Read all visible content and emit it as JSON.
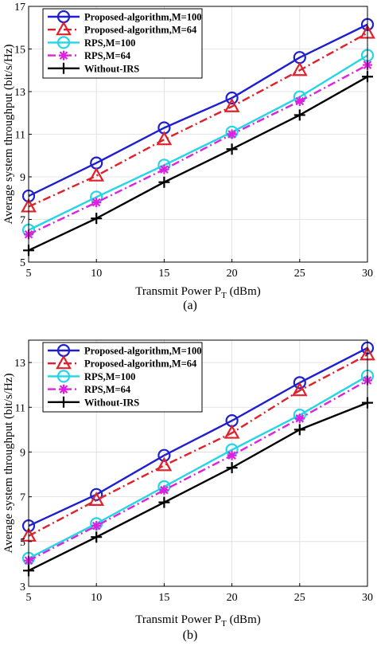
{
  "chart_data": [
    {
      "type": "line",
      "caption": "(a)",
      "xlabel_main": "Transmit Power P",
      "xlabel_sub": "T",
      "xlabel_unit": " (dBm)",
      "ylabel": "Average system throughput (bit/s/Hz)",
      "xlim": [
        5,
        30
      ],
      "ylim": [
        5,
        17
      ],
      "x_ticks": [
        5,
        10,
        15,
        20,
        25,
        30
      ],
      "y_ticks": [
        5,
        7,
        9,
        11,
        13,
        15,
        17
      ],
      "grid": true,
      "legend_position": "top-left",
      "x": [
        5,
        10,
        15,
        20,
        25,
        30
      ],
      "series": [
        {
          "name": "Proposed-algorithm,M=100",
          "color": "#1f1fd0",
          "dash": "solid",
          "marker": "circle",
          "values": [
            8.1,
            9.65,
            11.3,
            12.7,
            14.6,
            16.15
          ]
        },
        {
          "name": "Proposed-algorithm,M=64",
          "color": "#e0202a",
          "dash": "dashdot",
          "marker": "triangle",
          "values": [
            7.6,
            9.05,
            10.75,
            12.3,
            14.0,
            15.75
          ]
        },
        {
          "name": "RPS,M=100",
          "color": "#22d6e6",
          "dash": "solid",
          "marker": "circle",
          "values": [
            6.5,
            8.05,
            9.55,
            11.1,
            12.75,
            14.7
          ]
        },
        {
          "name": "RPS,M=64",
          "color": "#e020e0",
          "dash": "dashdot",
          "marker": "asterisk",
          "values": [
            6.3,
            7.8,
            9.35,
            11.0,
            12.55,
            14.25
          ]
        },
        {
          "name": "Without-IRS",
          "color": "#000000",
          "dash": "solid",
          "marker": "plus",
          "values": [
            5.55,
            7.05,
            8.75,
            10.3,
            11.9,
            13.7
          ]
        }
      ]
    },
    {
      "type": "line",
      "caption": "(b)",
      "xlabel_main": "Transmit Power P",
      "xlabel_sub": "T",
      "xlabel_unit": " (dBm)",
      "ylabel": "Average system throughput (bit/s/Hz)",
      "xlim": [
        5,
        30
      ],
      "ylim": [
        3,
        14
      ],
      "x_ticks": [
        5,
        10,
        15,
        20,
        25,
        30
      ],
      "y_ticks": [
        3,
        5,
        7,
        9,
        11,
        13
      ],
      "grid": true,
      "legend_position": "top-left",
      "x": [
        5,
        10,
        15,
        20,
        25,
        30
      ],
      "series": [
        {
          "name": "Proposed-algorithm,M=100",
          "color": "#1f1fd0",
          "dash": "solid",
          "marker": "circle",
          "values": [
            5.7,
            7.1,
            8.85,
            10.4,
            12.1,
            13.65
          ]
        },
        {
          "name": "Proposed-algorithm,M=64",
          "color": "#e0202a",
          "dash": "dashdot",
          "marker": "triangle",
          "values": [
            5.25,
            6.85,
            8.4,
            9.85,
            11.75,
            13.35
          ]
        },
        {
          "name": "RPS,M=100",
          "color": "#22d6e6",
          "dash": "solid",
          "marker": "circle",
          "values": [
            4.25,
            5.8,
            7.45,
            9.1,
            10.65,
            12.4
          ]
        },
        {
          "name": "RPS,M=64",
          "color": "#e020e0",
          "dash": "dashdot",
          "marker": "asterisk",
          "values": [
            4.15,
            5.7,
            7.3,
            8.85,
            10.5,
            12.2
          ]
        },
        {
          "name": "Without-IRS",
          "color": "#000000",
          "dash": "solid",
          "marker": "plus",
          "values": [
            3.7,
            5.2,
            6.75,
            8.3,
            10.0,
            11.2
          ]
        }
      ]
    }
  ]
}
